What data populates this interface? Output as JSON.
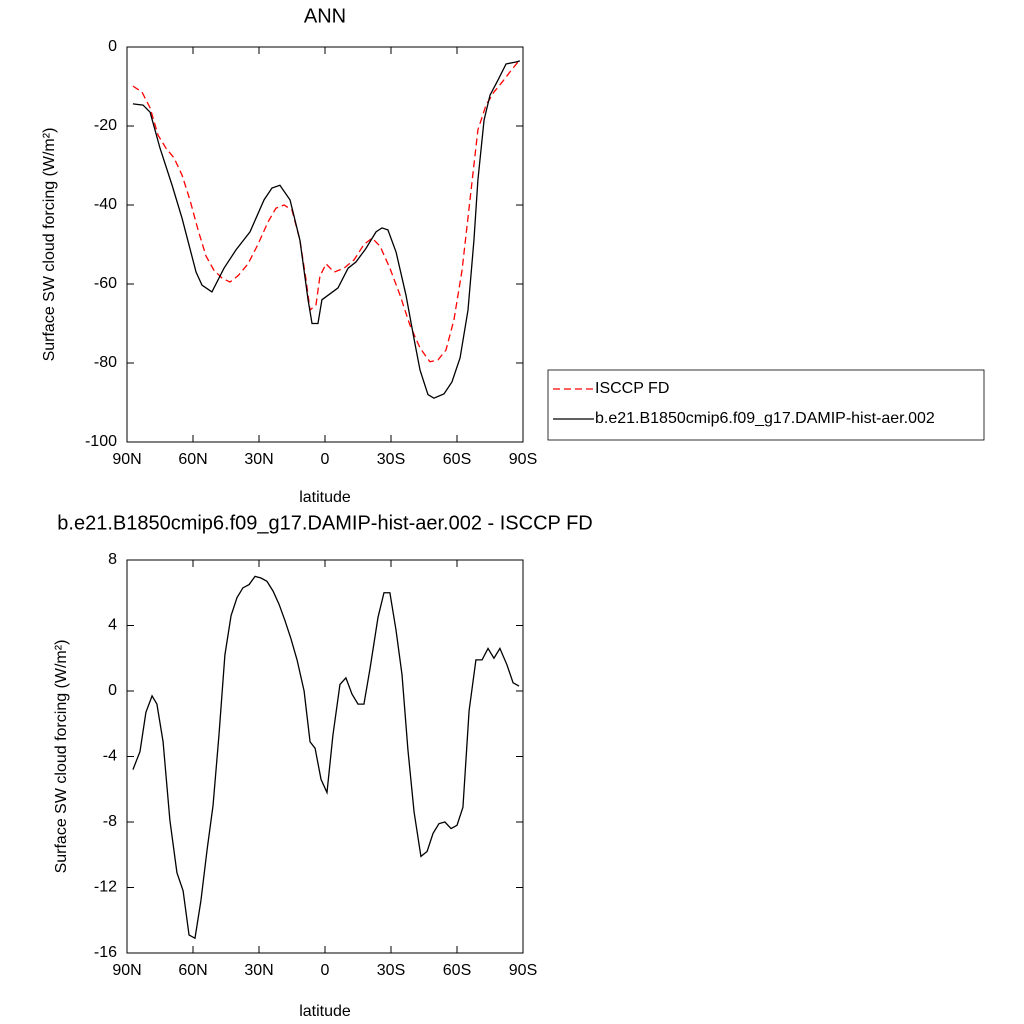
{
  "chart_data": [
    {
      "type": "line",
      "title": "ANN",
      "xlabel": "latitude",
      "ylabel": "Surface SW cloud forcing (W/m²)",
      "xlim": [
        90,
        -90
      ],
      "ylim": [
        -100,
        0
      ],
      "xticks": [
        {
          "value": 90,
          "label": "90N"
        },
        {
          "value": 60,
          "label": "60N"
        },
        {
          "value": 30,
          "label": "30N"
        },
        0,
        {
          "value": -30,
          "label": "30S"
        },
        {
          "value": -60,
          "label": "60S"
        },
        {
          "value": -90,
          "label": "90S"
        }
      ],
      "yticks": [
        -100,
        -80,
        -60,
        -40,
        -20,
        0
      ],
      "legend": "right",
      "series": [
        {
          "name": "ISCCP FD",
          "color": "#ff0000",
          "line_style": "dashed",
          "x": [
            87.3,
            83.2,
            79.5,
            75.9,
            72.3,
            68.6,
            65,
            61.4,
            57.7,
            54.1,
            50.5,
            46.8,
            43.2,
            39.5,
            35,
            30.5,
            25.9,
            22.3,
            18.6,
            15,
            11.4,
            8.6,
            6.8,
            4.1,
            2.3,
            -0.5,
            -4.1,
            -8.6,
            -13.2,
            -17.7,
            -21.4,
            -25,
            -29.5,
            -34.1,
            -38.6,
            -43.2,
            -47.7,
            -51.4,
            -55,
            -58.6,
            -62.3,
            -65.9,
            -69.5,
            -73.2,
            -76.8,
            -80.5,
            -84.1,
            -87.7
          ],
          "values": [
            -9.9,
            -11.4,
            -15.4,
            -22.3,
            -25.6,
            -28.1,
            -32.4,
            -38.7,
            -46.3,
            -52.9,
            -56.5,
            -58.5,
            -59.5,
            -57.9,
            -54.9,
            -50,
            -44.3,
            -40.8,
            -40,
            -41.3,
            -48.9,
            -59,
            -66.6,
            -65.3,
            -58,
            -54.9,
            -57,
            -56,
            -53.9,
            -50,
            -48.4,
            -50.4,
            -56,
            -62.8,
            -70.4,
            -76.2,
            -79.7,
            -79.2,
            -76.7,
            -69.1,
            -56.5,
            -38.7,
            -21,
            -14.7,
            -11.4,
            -8.9,
            -6.3,
            -3.8
          ]
        },
        {
          "name": "b.e21.B1850cmip6.f09_g17.DAMIP-hist-aer.002",
          "color": "#000000",
          "line_style": "solid",
          "x": [
            87.3,
            82.7,
            79.5,
            75,
            69.5,
            65,
            58.6,
            55.9,
            51.4,
            45.9,
            40.5,
            34.1,
            27.7,
            24.1,
            20.5,
            15.9,
            11.4,
            7.7,
            5.9,
            3.2,
            1.4,
            -5.9,
            -10.5,
            -14.1,
            -18.6,
            -23.2,
            -25.9,
            -28.6,
            -32.3,
            -36.8,
            -40.5,
            -43.2,
            -46.8,
            -49.5,
            -54.1,
            -57.7,
            -61.4,
            -65,
            -67.7,
            -69.5,
            -72.3,
            -75,
            -78.6,
            -82.3,
            -86.8,
            -88.6
          ],
          "values": [
            -14.4,
            -14.7,
            -16.5,
            -25.6,
            -35,
            -43.3,
            -57,
            -60.3,
            -62,
            -56,
            -51.4,
            -46.8,
            -38.7,
            -35.7,
            -35,
            -38.7,
            -48.9,
            -64,
            -70,
            -70,
            -64,
            -61,
            -56,
            -54.4,
            -51,
            -46.8,
            -45.8,
            -46.3,
            -51.9,
            -62.8,
            -74,
            -81.8,
            -88,
            -88.9,
            -87.8,
            -84.8,
            -78.7,
            -66.6,
            -48.9,
            -33.7,
            -18.5,
            -12.2,
            -8.4,
            -4.3,
            -3.8,
            -3.5
          ]
        }
      ]
    },
    {
      "type": "line",
      "title": "b.e21.B1850cmip6.f09_g17.DAMIP-hist-aer.002 - ISCCP FD",
      "xlabel": "latitude",
      "ylabel": "Surface SW cloud forcing (W/m²)",
      "xlim": [
        90,
        -90
      ],
      "ylim": [
        -16,
        8
      ],
      "xticks": [
        {
          "value": 90,
          "label": "90N"
        },
        {
          "value": 60,
          "label": "60N"
        },
        {
          "value": 30,
          "label": "30N"
        },
        0,
        {
          "value": -30,
          "label": "30S"
        },
        {
          "value": -60,
          "label": "60S"
        },
        {
          "value": -90,
          "label": "90S"
        }
      ],
      "yticks": [
        -16,
        -12,
        -8,
        -4,
        0,
        4,
        8
      ],
      "series": [
        {
          "color": "#000000",
          "line_style": "solid",
          "x": [
            87.3,
            84.1,
            81.4,
            78.6,
            76.4,
            73.6,
            70.5,
            67.3,
            64.5,
            61.8,
            59.1,
            56.4,
            53.6,
            50.9,
            48.2,
            45.5,
            42.7,
            40,
            37.3,
            34.5,
            31.8,
            29.1,
            26.4,
            23.6,
            20.9,
            18.2,
            15.5,
            12.7,
            9.5,
            6.8,
            4.5,
            1.8,
            -0.9,
            -3.6,
            -6.8,
            -9.5,
            -12.3,
            -15,
            -17.7,
            -20.5,
            -24.1,
            -26.8,
            -29.5,
            -32.3,
            -35,
            -37.7,
            -40.5,
            -43.6,
            -46.4,
            -49.1,
            -51.8,
            -54.5,
            -57.3,
            -60,
            -62.7,
            -65.5,
            -68.6,
            -71.4,
            -74.1,
            -76.8,
            -79.5,
            -82.7,
            -85.5,
            -88.2
          ],
          "values": [
            -4.8,
            -3.7,
            -1.3,
            -0.3,
            -0.8,
            -3.1,
            -7.9,
            -11.1,
            -12.2,
            -14.9,
            -15.1,
            -12.8,
            -9.7,
            -7,
            -2.7,
            2.2,
            4.6,
            5.7,
            6.3,
            6.5,
            7,
            6.9,
            6.7,
            6.1,
            5.3,
            4.3,
            3.2,
            1.9,
            0,
            -3.1,
            -3.5,
            -5.4,
            -6.2,
            -2.7,
            0.4,
            0.8,
            -0.2,
            -0.8,
            -0.8,
            1.4,
            4.5,
            6,
            6,
            3.7,
            1,
            -3.6,
            -7.4,
            -10.1,
            -9.8,
            -8.7,
            -8.1,
            -8,
            -8.4,
            -8.2,
            -7.1,
            -1.2,
            1.9,
            1.9,
            2.6,
            2,
            2.6,
            1.6,
            0.5,
            0.3
          ]
        }
      ]
    }
  ]
}
